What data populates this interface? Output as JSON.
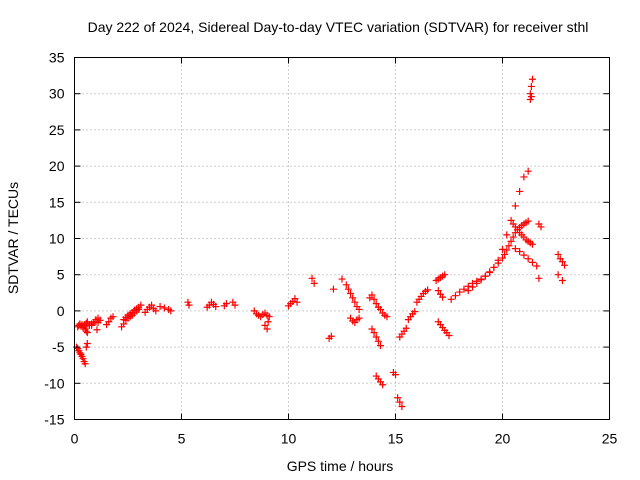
{
  "chart_data": {
    "type": "scatter",
    "title": "Day 222 of 2024, Sidereal Day-to-day VTEC variation (SDTVAR) for receiver sthl",
    "xlabel": "GPS time / hours",
    "ylabel": "SDTVAR / TECUs",
    "xlim": [
      0,
      25
    ],
    "ylim": [
      -15,
      35
    ],
    "xticks": [
      0,
      5,
      10,
      15,
      20,
      25
    ],
    "yticks": [
      -15,
      -10,
      -5,
      0,
      5,
      10,
      15,
      20,
      25,
      30,
      35
    ],
    "grid": true,
    "marker": "plus",
    "color": "#ff0000",
    "series": [
      {
        "name": "SDTVAR",
        "x": [
          0.1,
          0.15,
          0.2,
          0.25,
          0.3,
          0.35,
          0.4,
          0.45,
          0.5,
          0.55,
          0.6,
          0.7,
          0.8,
          0.9,
          1.0,
          1.1,
          1.2,
          0.15,
          0.2,
          0.25,
          0.3,
          0.35,
          0.4,
          0.45,
          0.5,
          0.55,
          0.6,
          0.5,
          0.55,
          0.6,
          0.8,
          0.9,
          1.0,
          1.05,
          1.1,
          1.5,
          1.6,
          1.7,
          1.8,
          2.2,
          2.3,
          2.4,
          2.5,
          2.6,
          2.7,
          2.8,
          2.9,
          3.0,
          2.3,
          2.4,
          2.5,
          2.6,
          2.7,
          2.8,
          2.9,
          3.0,
          3.1,
          3.3,
          3.4,
          3.5,
          3.6,
          3.7,
          3.8,
          4.0,
          4.2,
          4.4,
          4.5,
          5.3,
          5.35,
          6.2,
          6.3,
          6.4,
          6.5,
          6.6,
          7.0,
          7.1,
          7.4,
          7.5,
          8.4,
          8.5,
          8.6,
          8.7,
          8.8,
          8.9,
          9.0,
          9.1,
          8.9,
          9.0,
          9.05,
          10.0,
          10.1,
          10.2,
          10.3,
          10.4,
          11.1,
          11.2,
          11.9,
          12.0,
          12.1,
          12.5,
          12.7,
          12.8,
          12.9,
          13.0,
          13.1,
          13.2,
          13.3,
          12.9,
          13.0,
          13.1,
          13.2,
          13.3,
          13.8,
          13.9,
          14.0,
          14.1,
          14.2,
          14.3,
          14.4,
          14.5,
          14.6,
          13.9,
          14.0,
          14.1,
          14.2,
          14.3,
          14.1,
          14.2,
          14.3,
          14.4,
          14.9,
          15.0,
          15.1,
          15.2,
          15.3,
          15.2,
          15.3,
          15.4,
          15.5,
          15.6,
          15.7,
          15.8,
          15.9,
          16.0,
          16.1,
          16.2,
          16.3,
          16.4,
          16.5,
          16.9,
          17.0,
          17.1,
          17.2,
          17.3,
          17.0,
          17.1,
          17.2,
          17.3,
          17.4,
          17.5,
          17.0,
          17.1,
          17.2,
          17.6,
          17.8,
          18.0,
          18.2,
          18.4,
          18.6,
          18.8,
          19.0,
          19.2,
          19.4,
          19.6,
          19.8,
          20.0,
          20.2,
          20.4,
          20.6,
          20.8,
          21.0,
          21.2,
          18.4,
          18.6,
          18.8,
          19.0,
          19.2,
          19.4,
          19.6,
          19.8,
          20.0,
          20.1,
          20.2,
          20.3,
          20.4,
          20.5,
          20.6,
          20.7,
          20.8,
          20.9,
          21.0,
          21.1,
          21.2,
          20.5,
          20.6,
          20.7,
          20.8,
          20.9,
          21.0,
          21.1,
          21.2,
          21.3,
          21.4,
          20.6,
          20.8,
          21.0,
          21.2,
          21.4,
          21.6,
          21.7,
          21.3,
          21.35,
          21.4,
          21.3,
          21.35,
          21.7,
          21.8,
          22.6,
          22.7,
          22.8,
          22.9,
          22.6,
          22.8
        ],
        "y": [
          -5.0,
          -5.2,
          -5.5,
          -5.8,
          -6.0,
          -6.3,
          -6.6,
          -7.0,
          -7.3,
          -5.0,
          -4.5,
          -2.0,
          -1.8,
          -1.6,
          -1.5,
          -1.6,
          -1.3,
          -2.2,
          -2.0,
          -1.8,
          -2.1,
          -1.9,
          -2.3,
          -2.0,
          -2.2,
          -1.7,
          -1.5,
          -2.5,
          -2.8,
          -3.0,
          -2.0,
          -1.6,
          -1.2,
          -2.6,
          -1.0,
          -1.9,
          -1.5,
          -1.0,
          -0.8,
          -2.2,
          -1.8,
          -1.3,
          -1.0,
          -0.8,
          -0.6,
          -0.3,
          0.0,
          0.2,
          -1.2,
          -0.9,
          -0.6,
          -0.4,
          -0.2,
          0.1,
          0.3,
          0.5,
          0.8,
          -0.2,
          0.2,
          0.5,
          0.8,
          0.3,
          0.0,
          0.6,
          0.4,
          0.2,
          0.0,
          1.2,
          0.8,
          0.5,
          0.8,
          1.2,
          0.9,
          0.6,
          0.7,
          1.0,
          1.2,
          0.8,
          0.0,
          -0.4,
          -0.6,
          -0.8,
          -0.5,
          -0.3,
          -0.6,
          -0.8,
          -2.0,
          -2.5,
          -1.5,
          0.7,
          1.0,
          1.3,
          1.7,
          1.2,
          4.5,
          3.8,
          -3.8,
          -3.5,
          3.0,
          4.4,
          3.6,
          3.0,
          2.4,
          1.8,
          1.2,
          0.6,
          0.2,
          -1.0,
          -1.4,
          -1.6,
          -1.2,
          -1.0,
          1.8,
          2.2,
          1.6,
          1.0,
          0.5,
          0.2,
          -0.3,
          -0.6,
          -0.8,
          -2.5,
          -3.0,
          -3.6,
          -4.2,
          -4.8,
          -9.0,
          -9.4,
          -9.8,
          -10.2,
          -8.5,
          -8.8,
          -12.0,
          -12.6,
          -13.2,
          -3.6,
          -3.2,
          -2.8,
          -2.4,
          -1.2,
          -0.8,
          -0.4,
          -0.1,
          1.2,
          1.6,
          2.0,
          2.4,
          2.7,
          2.9,
          4.2,
          4.4,
          4.6,
          4.8,
          5.0,
          -1.5,
          -1.9,
          -2.3,
          -2.7,
          -3.0,
          -3.4,
          2.8,
          2.3,
          1.9,
          1.6,
          2.1,
          2.6,
          3.0,
          3.4,
          3.8,
          4.1,
          4.4,
          4.8,
          5.3,
          6.0,
          7.0,
          8.5,
          10.5,
          12.5,
          14.5,
          16.5,
          18.5,
          19.3,
          2.8,
          3.3,
          3.8,
          4.3,
          4.8,
          5.4,
          6.0,
          6.6,
          7.3,
          7.8,
          8.4,
          9.0,
          9.6,
          10.2,
          10.8,
          11.2,
          11.5,
          11.8,
          12.0,
          12.2,
          12.4,
          12.0,
          11.6,
          11.2,
          10.8,
          10.5,
          10.2,
          9.8,
          9.6,
          9.4,
          9.2,
          8.6,
          8.2,
          7.7,
          7.2,
          6.7,
          6.2,
          4.5,
          30.0,
          31.0,
          32.0,
          29.2,
          29.6,
          12.0,
          11.6,
          7.8,
          7.2,
          6.8,
          6.3,
          5.0,
          4.2
        ]
      }
    ]
  }
}
